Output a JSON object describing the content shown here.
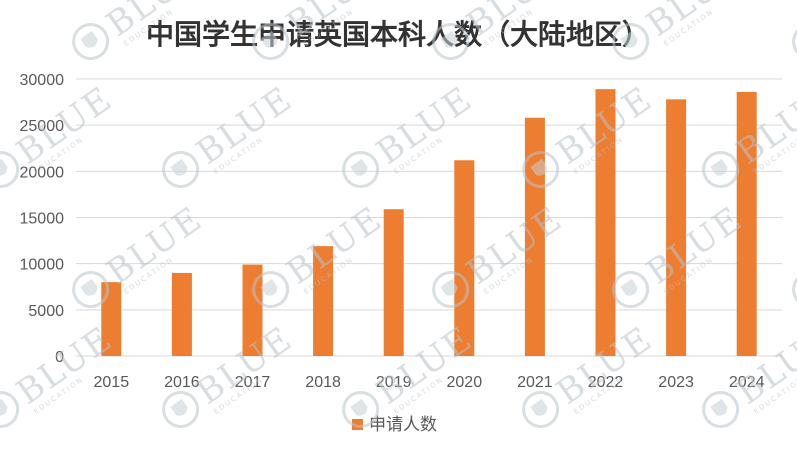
{
  "chart_data": {
    "type": "bar",
    "title": "中国学生申请英国本科人数（大陆地区）",
    "categories": [
      "2015",
      "2016",
      "2017",
      "2018",
      "2019",
      "2020",
      "2021",
      "2022",
      "2023",
      "2024"
    ],
    "series": [
      {
        "name": "申请人数",
        "color": "#ed7d31",
        "values": [
          8000,
          9000,
          9900,
          11900,
          15900,
          21200,
          25800,
          28900,
          27800,
          28600
        ]
      }
    ],
    "yticks": [
      "0",
      "5000",
      "10000",
      "15000",
      "20000",
      "25000",
      "30000"
    ],
    "ylim": [
      0,
      30000
    ],
    "grid": true,
    "legend_position": "bottom"
  },
  "watermark": {
    "text": "BLUE",
    "subtext": "EDUCATION"
  }
}
